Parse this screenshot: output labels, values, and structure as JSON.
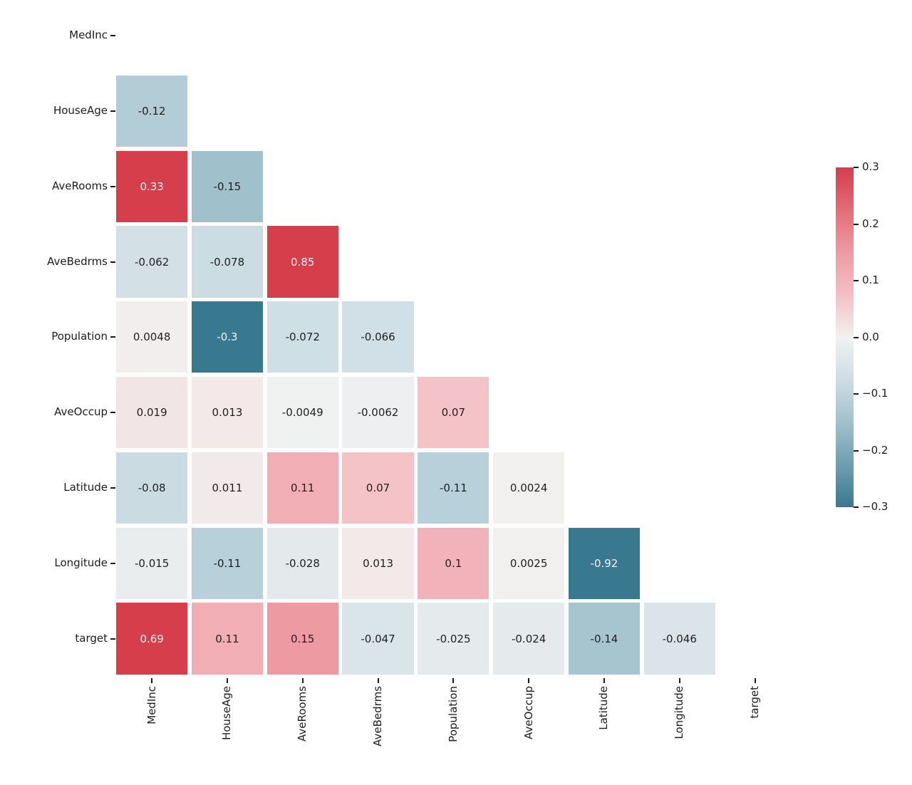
{
  "figure": {
    "background_color": "#ffffff",
    "text_color": "#1c1c1c"
  },
  "chart_data": {
    "type": "heatmap",
    "subtype": "correlation-matrix-lower-triangle",
    "title": "",
    "xlabel": "",
    "ylabel": "",
    "grid": false,
    "mask": "upper triangle and diagonal hidden",
    "columns": [
      "MedInc",
      "HouseAge",
      "AveRooms",
      "AveBedrms",
      "Population",
      "AveOccup",
      "Latitude",
      "Longitude",
      "target"
    ],
    "rows": [
      {
        "label": "MedInc",
        "cells": []
      },
      {
        "label": "HouseAge",
        "cells": [
          {
            "col": "MedInc",
            "value": -0.12,
            "text": "-0.12"
          }
        ]
      },
      {
        "label": "AveRooms",
        "cells": [
          {
            "col": "MedInc",
            "value": 0.33,
            "text": "0.33"
          },
          {
            "col": "HouseAge",
            "value": -0.15,
            "text": "-0.15"
          }
        ]
      },
      {
        "label": "AveBedrms",
        "cells": [
          {
            "col": "MedInc",
            "value": -0.062,
            "text": "-0.062"
          },
          {
            "col": "HouseAge",
            "value": -0.078,
            "text": "-0.078"
          },
          {
            "col": "AveRooms",
            "value": 0.85,
            "text": "0.85"
          }
        ]
      },
      {
        "label": "Population",
        "cells": [
          {
            "col": "MedInc",
            "value": 0.0048,
            "text": "0.0048"
          },
          {
            "col": "HouseAge",
            "value": -0.3,
            "text": "-0.3"
          },
          {
            "col": "AveRooms",
            "value": -0.072,
            "text": "-0.072"
          },
          {
            "col": "AveBedrms",
            "value": -0.066,
            "text": "-0.066"
          }
        ]
      },
      {
        "label": "AveOccup",
        "cells": [
          {
            "col": "MedInc",
            "value": 0.019,
            "text": "0.019"
          },
          {
            "col": "HouseAge",
            "value": 0.013,
            "text": "0.013"
          },
          {
            "col": "AveRooms",
            "value": -0.0049,
            "text": "-0.0049"
          },
          {
            "col": "AveBedrms",
            "value": -0.0062,
            "text": "-0.0062"
          },
          {
            "col": "Population",
            "value": 0.07,
            "text": "0.07"
          }
        ]
      },
      {
        "label": "Latitude",
        "cells": [
          {
            "col": "MedInc",
            "value": -0.08,
            "text": "-0.08"
          },
          {
            "col": "HouseAge",
            "value": 0.011,
            "text": "0.011"
          },
          {
            "col": "AveRooms",
            "value": 0.11,
            "text": "0.11"
          },
          {
            "col": "AveBedrms",
            "value": 0.07,
            "text": "0.07"
          },
          {
            "col": "Population",
            "value": -0.11,
            "text": "-0.11"
          },
          {
            "col": "AveOccup",
            "value": 0.0024,
            "text": "0.0024"
          }
        ]
      },
      {
        "label": "Longitude",
        "cells": [
          {
            "col": "MedInc",
            "value": -0.015,
            "text": "-0.015"
          },
          {
            "col": "HouseAge",
            "value": -0.11,
            "text": "-0.11"
          },
          {
            "col": "AveRooms",
            "value": -0.028,
            "text": "-0.028"
          },
          {
            "col": "AveBedrms",
            "value": 0.013,
            "text": "0.013"
          },
          {
            "col": "Population",
            "value": 0.1,
            "text": "0.1"
          },
          {
            "col": "AveOccup",
            "value": 0.0025,
            "text": "0.0025"
          },
          {
            "col": "Latitude",
            "value": -0.92,
            "text": "-0.92"
          }
        ]
      },
      {
        "label": "target",
        "cells": [
          {
            "col": "MedInc",
            "value": 0.69,
            "text": "0.69"
          },
          {
            "col": "HouseAge",
            "value": 0.11,
            "text": "0.11"
          },
          {
            "col": "AveRooms",
            "value": 0.15,
            "text": "0.15"
          },
          {
            "col": "AveBedrms",
            "value": -0.047,
            "text": "-0.047"
          },
          {
            "col": "Population",
            "value": -0.025,
            "text": "-0.025"
          },
          {
            "col": "AveOccup",
            "value": -0.024,
            "text": "-0.024"
          },
          {
            "col": "Latitude",
            "value": -0.14,
            "text": "-0.14"
          },
          {
            "col": "Longitude",
            "value": -0.046,
            "text": "-0.046"
          }
        ]
      }
    ],
    "colorscale": {
      "vmin": -0.3,
      "vmax": 0.3,
      "center_color": "#f1f1f1",
      "max_color": "#d63e4b",
      "min_color": "#39798f",
      "positive_anchors": [
        [
          0,
          "#f2f1f0"
        ],
        [
          0.25,
          "#f3c0c4"
        ],
        [
          0.5,
          "#ee9aa2"
        ],
        [
          0.75,
          "#e26c77"
        ],
        [
          1,
          "#d63e4b"
        ]
      ],
      "negative_anchors": [
        [
          0,
          "#f1f1f1"
        ],
        [
          0.25,
          "#cddee4"
        ],
        [
          0.5,
          "#a0c1cc"
        ],
        [
          0.75,
          "#6d9fb0"
        ],
        [
          1,
          "#39798f"
        ]
      ],
      "annotation_dark_text": "#1f1f1f",
      "annotation_light_text": "#f7f3f2"
    },
    "colorbar": {
      "position": "right",
      "tick_labels": [
        "0.3",
        "0.2",
        "0.1",
        "0.0",
        "−0.1",
        "−0.2",
        "−0.3"
      ],
      "tick_values": [
        0.3,
        0.2,
        0.1,
        0.0,
        -0.1,
        -0.2,
        -0.3
      ]
    }
  }
}
